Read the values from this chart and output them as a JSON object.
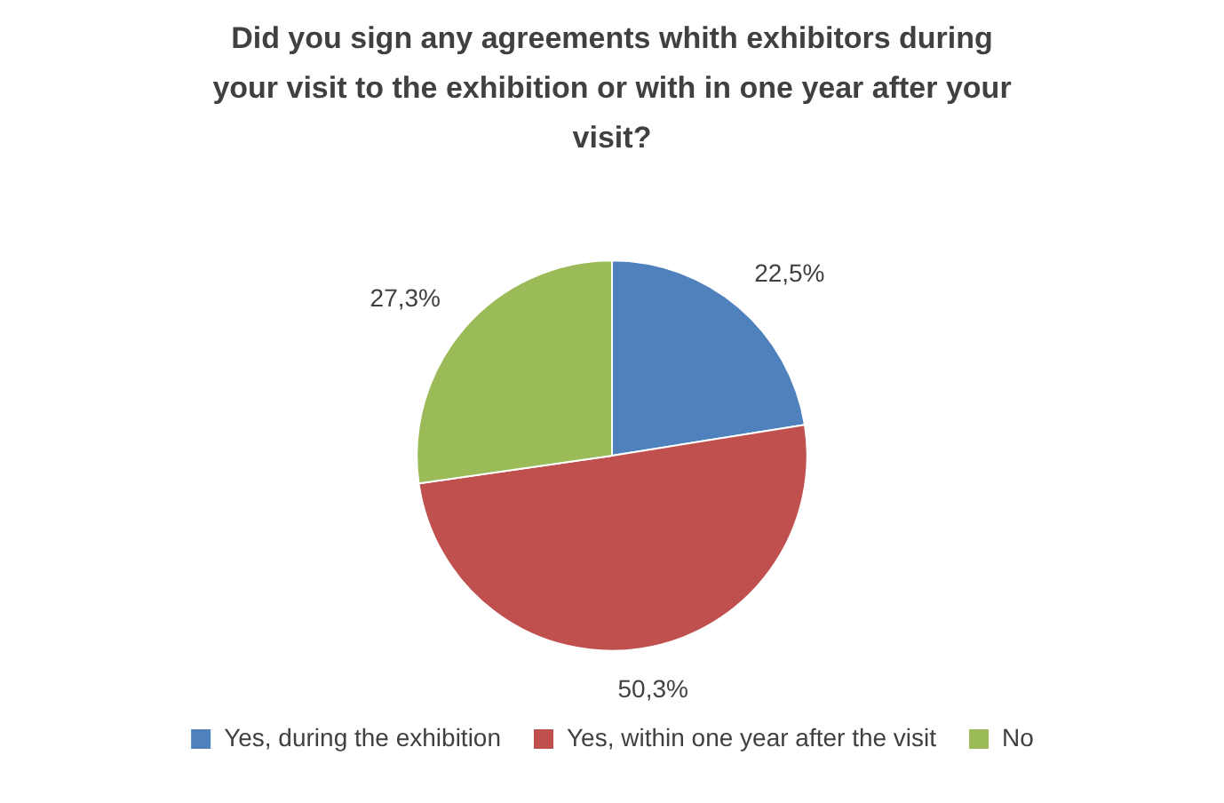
{
  "chart_data": {
    "type": "pie",
    "title": "Did you sign any agreements whith exhibitors during your visit to the exhibition or with in one year after your visit?",
    "categories": [
      "Yes, during the exhibition",
      "Yes, within one year after the visit",
      "No"
    ],
    "values": [
      22.5,
      50.3,
      27.3
    ],
    "value_labels": [
      "22,5%",
      "50,3%",
      "27,3%"
    ],
    "colors": [
      "#4f81bd",
      "#c0504d",
      "#9bbb59"
    ],
    "legend": "bottom"
  }
}
